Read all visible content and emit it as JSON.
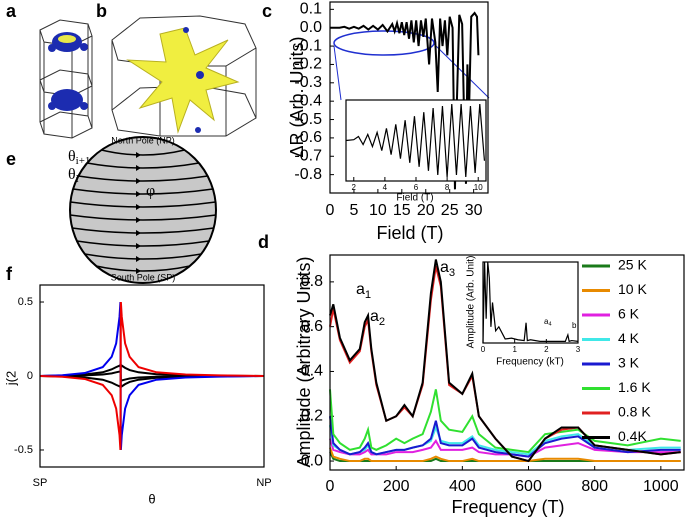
{
  "panels": {
    "a": "a",
    "b": "b",
    "c": "c",
    "d": "d",
    "e": "e",
    "f": "f"
  },
  "diagram_e": {
    "north": "North Pole (NP)",
    "south": "South Pole (SP)",
    "theta_upper": {
      "text": "θ",
      "sub": "i+1"
    },
    "theta_lower": {
      "text": "θ",
      "sub": "i"
    },
    "phi": "φ"
  },
  "chart_data": [
    {
      "type": "line",
      "xlabel": "Field (T)",
      "ylabel": "ΔR (Arb. Units)",
      "xlim": [
        0,
        33
      ],
      "ylim": [
        -0.9,
        0.14
      ],
      "xticks": [
        0,
        5,
        10,
        15,
        20,
        25,
        30
      ],
      "yticks": [
        0.1,
        {
          "value": 0,
          "label": "0.0"
        },
        -0.1,
        -0.2,
        -0.3,
        -0.4,
        -0.5,
        -0.6,
        -0.7,
        -0.8
      ],
      "x": [
        0,
        1,
        2,
        3,
        4,
        5,
        6,
        7,
        8,
        9,
        10,
        11,
        12,
        13,
        13.5,
        14,
        14.5,
        15,
        15.5,
        16,
        16.5,
        17,
        17.5,
        18,
        18.5,
        19,
        19.5,
        20,
        20.7,
        21.3,
        22,
        22.5,
        23,
        23.5,
        24,
        24.5,
        25,
        25.6,
        26.1,
        26.4,
        27,
        27.6,
        28.1,
        28.4,
        28.7,
        29,
        29.5,
        30.2,
        30.7,
        31
      ],
      "series": [
        {
          "color": "#000000",
          "values": [
            0,
            0,
            0,
            0.005,
            -0.005,
            0.005,
            -0.005,
            0.01,
            -0.01,
            0.01,
            -0.01,
            0.015,
            -0.02,
            0.02,
            -0.02,
            0.025,
            -0.03,
            0.03,
            -0.04,
            0.03,
            -0.06,
            0.04,
            -0.08,
            0.04,
            -0.1,
            0.04,
            -0.05,
            0.05,
            -0.2,
            0.05,
            -0.08,
            -0.35,
            0.05,
            -0.1,
            0.04,
            -0.15,
            0.06,
            0.0,
            -0.88,
            -0.5,
            0.07,
            0.02,
            -0.6,
            -0.85,
            -0.2,
            -0.5,
            0.06,
            0.08,
            0.06,
            -0.15
          ]
        }
      ]
    },
    {
      "type": "line",
      "xlabel": "Field (T)",
      "xlim": [
        1.5,
        10.5
      ],
      "ylim": [
        -1,
        1
      ],
      "xticks": [
        2,
        4,
        6,
        8,
        10
      ],
      "x": [
        1.5,
        2,
        2.3,
        2.6,
        2.9,
        3.2,
        3.5,
        3.8,
        4.1,
        4.4,
        4.7,
        5,
        5.3,
        5.6,
        5.9,
        6.2,
        6.5,
        6.8,
        7.1,
        7.4,
        7.7,
        8,
        8.3,
        8.6,
        8.9,
        9.2,
        9.5,
        9.8,
        10.1,
        10.4
      ],
      "series": [
        {
          "color": "#000000",
          "values": [
            0,
            0.02,
            0.1,
            -0.1,
            0.15,
            -0.15,
            0.2,
            -0.25,
            0.3,
            -0.35,
            0.4,
            -0.45,
            0.5,
            -0.55,
            0.6,
            -0.65,
            0.7,
            -0.75,
            0.8,
            -0.85,
            0.85,
            -0.9,
            0.9,
            -0.85,
            0.9,
            -0.9,
            0.85,
            -0.8,
            0.9,
            -0.5
          ]
        }
      ]
    },
    {
      "type": "line",
      "xlabel": "θ",
      "ylabel": "j(2",
      "xlim": [
        0,
        1
      ],
      "ylim": [
        -0.615,
        0.615
      ],
      "xticks": [
        {
          "value": 0,
          "label": "SP"
        },
        {
          "value": 1,
          "label": "NP"
        }
      ],
      "yticks": [
        0.5,
        0,
        -0.5
      ],
      "x": [
        0,
        0.1,
        0.2,
        0.28,
        0.32,
        0.34,
        0.355,
        0.359,
        0.361,
        0.365,
        0.38,
        0.4,
        0.44,
        0.52,
        0.65,
        0.8,
        1
      ],
      "series": [
        {
          "color": "#000000",
          "values": [
            0,
            0.003,
            0.01,
            0.025,
            0.045,
            0.06,
            0.07,
            0.075,
            -0.075,
            -0.07,
            -0.055,
            -0.04,
            -0.025,
            -0.012,
            -0.005,
            -0.002,
            0
          ]
        },
        {
          "color": "#000000",
          "values": [
            0,
            -0.003,
            -0.01,
            -0.025,
            -0.045,
            -0.06,
            -0.07,
            -0.075,
            0.075,
            0.07,
            0.055,
            0.04,
            0.025,
            0.012,
            0.005,
            0.002,
            0
          ]
        },
        {
          "color": "#000000",
          "values": [
            0,
            0.001,
            0.004,
            0.01,
            0.018,
            0.025,
            0.03,
            0.032,
            -0.032,
            -0.03,
            -0.024,
            -0.017,
            -0.01,
            -0.005,
            -0.002,
            -0.001,
            0
          ]
        },
        {
          "color": "#0000ee",
          "values": [
            0,
            0.005,
            0.02,
            0.06,
            0.13,
            0.22,
            0.4,
            0.5,
            -0.5,
            -0.4,
            -0.22,
            -0.13,
            -0.06,
            -0.025,
            -0.01,
            -0.004,
            0
          ]
        },
        {
          "color": "#ee0000",
          "values": [
            0,
            -0.005,
            -0.02,
            -0.06,
            -0.13,
            -0.22,
            -0.4,
            -0.5,
            0.5,
            0.4,
            0.22,
            0.13,
            0.06,
            0.025,
            0.01,
            0.004,
            0
          ]
        }
      ]
    },
    {
      "type": "line",
      "xlabel": "Frequency (T)",
      "ylabel": "Amplitude (Arbitrary Units)",
      "xlim": [
        0,
        1070
      ],
      "ylim": [
        -0.04,
        0.92
      ],
      "xticks": [
        0,
        200,
        400,
        600,
        800,
        1000
      ],
      "yticks": [
        {
          "value": 0,
          "label": "0.0"
        },
        0.2,
        0.4,
        0.6,
        0.8
      ],
      "legend": true,
      "annotations": [
        {
          "text": "a",
          "sub": "1"
        },
        {
          "text": "a",
          "sub": "2"
        },
        {
          "text": "a",
          "sub": "3"
        }
      ],
      "x": [
        0,
        10,
        30,
        60,
        90,
        105,
        115,
        125,
        140,
        170,
        200,
        225,
        250,
        280,
        305,
        320,
        335,
        360,
        400,
        430,
        450,
        500,
        550,
        600,
        650,
        700,
        750,
        800,
        900,
        1000,
        1060
      ],
      "series": [
        {
          "name": "25 K",
          "color": "#1a7a1a",
          "values": [
            0.04,
            0.01,
            0,
            0,
            0,
            0,
            0,
            0,
            0,
            0,
            0,
            0,
            0,
            0,
            0,
            0.01,
            0,
            0,
            0,
            0,
            0,
            0,
            0,
            0,
            0,
            0,
            0,
            0,
            0,
            0,
            0
          ]
        },
        {
          "name": "10 K",
          "color": "#e88a00",
          "values": [
            0.06,
            0.02,
            0.01,
            0,
            0,
            0.01,
            0.01,
            0,
            0,
            0,
            0,
            0,
            0,
            0,
            0.01,
            0.02,
            0.01,
            0,
            0,
            0.01,
            0,
            0,
            0,
            0,
            0.01,
            0.01,
            0.01,
            0,
            0,
            0,
            0
          ]
        },
        {
          "name": "6 K",
          "color": "#e020e0",
          "values": [
            0.1,
            0.05,
            0.04,
            0.03,
            0.03,
            0.04,
            0.05,
            0.03,
            0.03,
            0.03,
            0.04,
            0.04,
            0.04,
            0.05,
            0.06,
            0.09,
            0.05,
            0.05,
            0.05,
            0.06,
            0.04,
            0.03,
            0.03,
            0.02,
            0.06,
            0.07,
            0.08,
            0.05,
            0.04,
            0.04,
            0.04
          ]
        },
        {
          "name": "4 K",
          "color": "#40e8e8",
          "values": [
            0.16,
            0.07,
            0.05,
            0.03,
            0.04,
            0.05,
            0.07,
            0.04,
            0.03,
            0.04,
            0.05,
            0.05,
            0.06,
            0.07,
            0.09,
            0.15,
            0.09,
            0.08,
            0.08,
            0.11,
            0.07,
            0.05,
            0.04,
            0.03,
            0.09,
            0.11,
            0.12,
            0.07,
            0.05,
            0.06,
            0.06
          ]
        },
        {
          "name": "3 K",
          "color": "#1a1ad0",
          "values": [
            0.2,
            0.08,
            0.05,
            0.03,
            0.04,
            0.06,
            0.08,
            0.04,
            0.03,
            0.04,
            0.05,
            0.05,
            0.06,
            0.07,
            0.1,
            0.18,
            0.08,
            0.07,
            0.07,
            0.1,
            0.06,
            0.04,
            0.03,
            0.02,
            0.08,
            0.1,
            0.11,
            0.06,
            0.04,
            0.05,
            0.05
          ]
        },
        {
          "name": "1.6 K",
          "color": "#30e030",
          "values": [
            0.32,
            0.12,
            0.08,
            0.05,
            0.06,
            0.1,
            0.14,
            0.06,
            0.05,
            0.07,
            0.1,
            0.08,
            0.1,
            0.12,
            0.22,
            0.32,
            0.18,
            0.14,
            0.13,
            0.2,
            0.12,
            0.06,
            0.05,
            0.04,
            0.12,
            0.13,
            0.14,
            0.09,
            0.07,
            0.1,
            0.09
          ]
        },
        {
          "name": "0.8 K",
          "color": "#e02020",
          "values": [
            0.6,
            0.68,
            0.54,
            0.44,
            0.49,
            0.6,
            0.63,
            0.49,
            0.34,
            0.18,
            0.2,
            0.24,
            0.2,
            0.34,
            0.72,
            0.87,
            0.78,
            0.34,
            0.3,
            0.38,
            0.2,
            0.1,
            0.02,
            0,
            0.1,
            0.14,
            0.15,
            0.07,
            0.05,
            0.03,
            0.04
          ]
        },
        {
          "name": "0.4K",
          "color": "#000000",
          "values": [
            0.65,
            0.7,
            0.55,
            0.45,
            0.5,
            0.62,
            0.65,
            0.5,
            0.35,
            0.18,
            0.2,
            0.25,
            0.2,
            0.35,
            0.75,
            0.9,
            0.8,
            0.35,
            0.3,
            0.39,
            0.2,
            0.1,
            0.02,
            0,
            0.1,
            0.15,
            0.15,
            0.07,
            0.05,
            0.03,
            0.04
          ]
        }
      ]
    },
    {
      "type": "line",
      "xlabel": "Frequency (kT)",
      "ylabel": "Amplitude (Arb. Unit)",
      "xlim": [
        0,
        3
      ],
      "ylim": [
        0,
        1
      ],
      "xticks": [
        0,
        1,
        2,
        3
      ],
      "annotations": [
        {
          "text": "a",
          "sub": "4"
        },
        {
          "text": "b"
        }
      ],
      "x": [
        0,
        0.05,
        0.1,
        0.15,
        0.2,
        0.25,
        0.3,
        0.4,
        0.5,
        0.7,
        0.9,
        1.1,
        1.3,
        1.36,
        1.4,
        1.5,
        1.8,
        2.2,
        2.6,
        2.68,
        2.72,
        2.8,
        3
      ],
      "series": [
        {
          "color": "#000000",
          "values": [
            0,
            1,
            0.3,
            1,
            0.8,
            0.2,
            0.5,
            0.15,
            0.2,
            0.05,
            0.06,
            0.04,
            0.03,
            0.25,
            0.03,
            0.04,
            0.02,
            0.02,
            0.02,
            0.1,
            0.02,
            0.03,
            0.02
          ]
        }
      ]
    }
  ]
}
